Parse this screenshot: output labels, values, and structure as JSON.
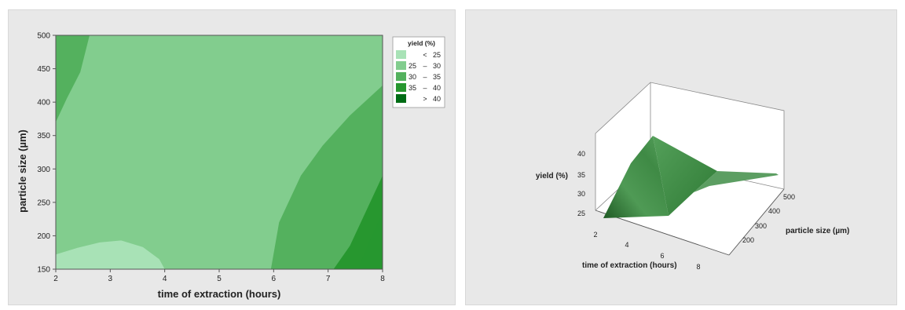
{
  "chart_data": [
    {
      "type": "contour",
      "xlabel": "time of extraction (hours)",
      "ylabel": "particle size (µm)",
      "xlim": [
        2,
        8
      ],
      "ylim": [
        150,
        500
      ],
      "xticks": [
        "2",
        "3",
        "4",
        "5",
        "6",
        "7",
        "8"
      ],
      "yticks": [
        "150",
        "200",
        "250",
        "300",
        "350",
        "400",
        "450",
        "500"
      ],
      "legend": {
        "title": "yield (%)",
        "position": "right",
        "entries": [
          {
            "op": "<",
            "low": "",
            "high": "25",
            "color": "#a8e2b6"
          },
          {
            "op": "–",
            "low": "25",
            "high": "30",
            "color": "#82cd8e"
          },
          {
            "op": "–",
            "low": "30",
            "high": "35",
            "color": "#54b15e"
          },
          {
            "op": "–",
            "low": "35",
            "high": "40",
            "color": "#27972f"
          },
          {
            "op": ">",
            "low": "",
            "high": "40",
            "color": "#006c15"
          }
        ]
      },
      "regions": [
        {
          "level": "< 25",
          "polygon": [
            [
              2,
              150
            ],
            [
              2,
              172
            ],
            [
              2.4,
              182
            ],
            [
              2.8,
              190
            ],
            [
              3.2,
              193
            ],
            [
              3.6,
              183
            ],
            [
              3.9,
              165
            ],
            [
              4,
              150
            ]
          ]
        },
        {
          "level": "30 – 35",
          "polygon": [
            [
              2,
              500
            ],
            [
              2.62,
              500
            ],
            [
              2.45,
              445
            ],
            [
              2.2,
              405
            ],
            [
              2,
              370
            ]
          ]
        },
        {
          "level": "30 – 35",
          "polygon": [
            [
              5.95,
              150
            ],
            [
              6.1,
              220
            ],
            [
              6.5,
              290
            ],
            [
              6.9,
              335
            ],
            [
              7.4,
              380
            ],
            [
              8,
              425
            ],
            [
              8,
              150
            ]
          ]
        },
        {
          "level": "35 – 40",
          "polygon": [
            [
              7.1,
              150
            ],
            [
              7.4,
              185
            ],
            [
              7.8,
              255
            ],
            [
              8,
              290
            ],
            [
              8,
              150
            ]
          ]
        }
      ]
    },
    {
      "type": "surface",
      "zlabel": "yield (%)",
      "xlabel": "time of extraction (hours)",
      "ylabel": "particle size (µm)",
      "zticks": [
        "25",
        "30",
        "35",
        "40"
      ],
      "xticks": [
        "2",
        "4",
        "6",
        "8"
      ],
      "yticks": [
        "200",
        "300",
        "400",
        "500"
      ],
      "surface_color": "#3f8f45"
    }
  ]
}
